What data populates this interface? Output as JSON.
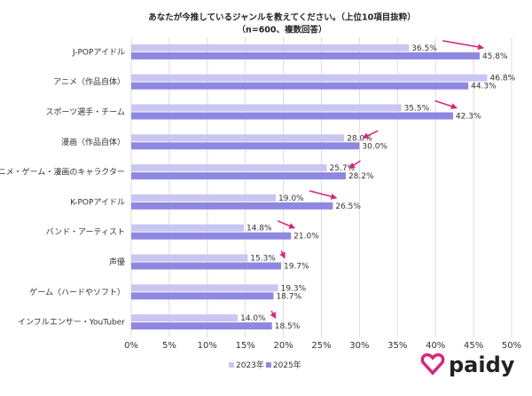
{
  "chart_data": {
    "type": "hbar",
    "title": "あなたが今推しているジャンルを教えてください。（上位10項目抜粋）",
    "subtitle": "（n=600、複数回答）",
    "categories": [
      "J-POPアイドル",
      "アニメ（作品自体）",
      "スポーツ選手・チーム",
      "漫画（作品自体）",
      "アニメ・ゲーム・漫画のキャラクター",
      "K-POPアイドル",
      "バンド・アーティスト",
      "声優",
      "ゲーム（ハードやソフト）",
      "インフルエンサー・YouTuber"
    ],
    "series": [
      {
        "name": "2023年",
        "color": "#c9c6f2",
        "values": [
          36.5,
          46.8,
          35.5,
          28.0,
          25.7,
          19.0,
          14.8,
          15.3,
          19.3,
          14.0
        ],
        "value_labels": [
          "36.5%",
          "46.8%",
          "35.5%",
          "28.0%",
          "25.7%",
          "19.0%",
          "14.8%",
          "15.3%",
          "19.3%",
          "14.0%"
        ]
      },
      {
        "name": "2025年",
        "color": "#8f88e2",
        "values": [
          45.8,
          44.3,
          42.3,
          30.0,
          28.2,
          26.5,
          21.0,
          19.7,
          18.7,
          18.5
        ],
        "value_labels": [
          "45.8%",
          "44.3%",
          "42.3%",
          "30.0%",
          "28.2%",
          "26.5%",
          "21.0%",
          "19.7%",
          "18.7%",
          "18.5%"
        ]
      }
    ],
    "xlim": [
      0,
      50
    ],
    "xticks": [
      {
        "value": 0,
        "label": "0%"
      },
      {
        "value": 5,
        "label": "5%"
      },
      {
        "value": 10,
        "label": "10%"
      },
      {
        "value": 15,
        "label": "15%"
      },
      {
        "value": 20,
        "label": "20%"
      },
      {
        "value": 25,
        "label": "25%"
      },
      {
        "value": 30,
        "label": "30%"
      },
      {
        "value": 35,
        "label": "35%"
      },
      {
        "value": 40,
        "label": "40%"
      },
      {
        "value": 45,
        "label": "45%"
      },
      {
        "value": 50,
        "label": "50%"
      }
    ],
    "grid": true,
    "arrow_color": "#d6267a",
    "logo": "paidy"
  }
}
